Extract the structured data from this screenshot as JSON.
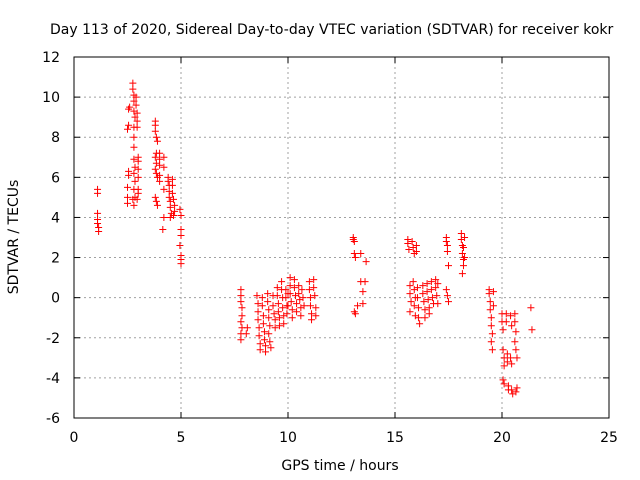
{
  "chart_data": {
    "type": "scatter",
    "title": "Day 113 of 2020, Sidereal Day-to-day VTEC variation (SDTVAR) for receiver kokr",
    "xlabel": "GPS time / hours",
    "ylabel": "SDTVAR / TECUs",
    "xlim": [
      0,
      25
    ],
    "ylim": [
      -6,
      12
    ],
    "xticks": [
      0,
      5,
      10,
      15,
      20,
      25
    ],
    "yticks": [
      -6,
      -4,
      -2,
      0,
      2,
      4,
      6,
      8,
      10,
      12
    ],
    "xtick_labels": [
      "0",
      "5",
      "10",
      "15",
      "20",
      "25"
    ],
    "ytick_labels": [
      "-6",
      "-4",
      "-2",
      "0",
      "2",
      "4",
      "6",
      "8",
      "10",
      "12"
    ],
    "grid": true,
    "marker": "+",
    "color": "#ff0000",
    "series": [
      {
        "name": "SDTVAR",
        "points": [
          [
            1.1,
            5.4
          ],
          [
            1.1,
            5.2
          ],
          [
            1.1,
            4.2
          ],
          [
            1.1,
            3.9
          ],
          [
            1.1,
            3.7
          ],
          [
            1.15,
            3.5
          ],
          [
            1.15,
            3.3
          ],
          [
            2.5,
            4.7
          ],
          [
            2.5,
            5.0
          ],
          [
            2.5,
            5.5
          ],
          [
            2.55,
            6.1
          ],
          [
            2.55,
            6.3
          ],
          [
            2.5,
            8.4
          ],
          [
            2.55,
            8.6
          ],
          [
            2.55,
            9.4
          ],
          [
            2.6,
            9.5
          ],
          [
            2.75,
            10.7
          ],
          [
            2.75,
            10.4
          ],
          [
            2.8,
            10.1
          ],
          [
            2.8,
            9.8
          ],
          [
            2.8,
            9.3
          ],
          [
            2.85,
            9.0
          ],
          [
            2.8,
            8.5
          ],
          [
            2.8,
            8.0
          ],
          [
            2.8,
            7.5
          ],
          [
            2.8,
            6.9
          ],
          [
            2.85,
            6.5
          ],
          [
            2.8,
            6.2
          ],
          [
            2.85,
            5.8
          ],
          [
            2.8,
            5.4
          ],
          [
            2.85,
            5.0
          ],
          [
            2.8,
            4.6
          ],
          [
            2.75,
            4.9
          ],
          [
            2.9,
            10.0
          ],
          [
            2.9,
            9.6
          ],
          [
            2.95,
            9.2
          ],
          [
            2.95,
            8.8
          ],
          [
            2.95,
            8.5
          ],
          [
            3.0,
            7.0
          ],
          [
            3.0,
            6.8
          ],
          [
            3.0,
            6.4
          ],
          [
            3.0,
            6.0
          ],
          [
            3.0,
            5.4
          ],
          [
            3.0,
            5.2
          ],
          [
            2.95,
            4.9
          ],
          [
            3.8,
            8.8
          ],
          [
            3.8,
            8.6
          ],
          [
            3.8,
            8.3
          ],
          [
            3.85,
            8.0
          ],
          [
            3.9,
            7.8
          ],
          [
            3.85,
            7.2
          ],
          [
            3.8,
            7.0
          ],
          [
            3.85,
            6.7
          ],
          [
            3.8,
            6.4
          ],
          [
            3.85,
            6.2
          ],
          [
            3.9,
            6.0
          ],
          [
            3.8,
            5.0
          ],
          [
            3.85,
            4.8
          ],
          [
            3.9,
            4.6
          ],
          [
            4.0,
            7.2
          ],
          [
            4.0,
            6.9
          ],
          [
            4.0,
            6.6
          ],
          [
            4.0,
            6.1
          ],
          [
            4.0,
            5.8
          ],
          [
            4.2,
            7.0
          ],
          [
            4.2,
            6.5
          ],
          [
            4.2,
            5.4
          ],
          [
            4.2,
            4.0
          ],
          [
            4.15,
            3.4
          ],
          [
            4.4,
            6.0
          ],
          [
            4.4,
            5.8
          ],
          [
            4.45,
            5.6
          ],
          [
            4.45,
            5.3
          ],
          [
            4.45,
            5.0
          ],
          [
            4.5,
            4.8
          ],
          [
            4.5,
            4.5
          ],
          [
            4.55,
            4.2
          ],
          [
            4.5,
            4.0
          ],
          [
            4.6,
            5.9
          ],
          [
            4.6,
            5.6
          ],
          [
            4.6,
            5.2
          ],
          [
            4.65,
            4.9
          ],
          [
            4.7,
            4.6
          ],
          [
            4.7,
            4.3
          ],
          [
            4.65,
            4.1
          ],
          [
            4.95,
            4.4
          ],
          [
            5.0,
            4.1
          ],
          [
            5.0,
            3.4
          ],
          [
            5.0,
            3.1
          ],
          [
            4.95,
            2.6
          ],
          [
            5.0,
            2.1
          ],
          [
            5.0,
            1.9
          ],
          [
            5.0,
            1.7
          ],
          [
            7.8,
            0.4
          ],
          [
            7.8,
            0.1
          ],
          [
            7.8,
            -0.2
          ],
          [
            7.85,
            -0.5
          ],
          [
            7.85,
            -0.9
          ],
          [
            7.8,
            -1.2
          ],
          [
            7.85,
            -1.5
          ],
          [
            7.8,
            -1.8
          ],
          [
            7.8,
            -2.1
          ],
          [
            8.1,
            -1.5
          ],
          [
            8.05,
            -1.8
          ],
          [
            8.55,
            0.1
          ],
          [
            8.6,
            -0.3
          ],
          [
            8.6,
            -0.7
          ],
          [
            8.6,
            -1.1
          ],
          [
            8.65,
            -1.5
          ],
          [
            8.65,
            -1.9
          ],
          [
            8.7,
            -2.3
          ],
          [
            8.7,
            -2.6
          ],
          [
            8.8,
            0.0
          ],
          [
            8.8,
            -0.4
          ],
          [
            8.85,
            -0.9
          ],
          [
            8.85,
            -1.3
          ],
          [
            8.9,
            -1.7
          ],
          [
            8.9,
            -2.1
          ],
          [
            8.95,
            -2.4
          ],
          [
            8.95,
            -2.7
          ],
          [
            9.05,
            0.2
          ],
          [
            9.05,
            -0.2
          ],
          [
            9.1,
            -0.6
          ],
          [
            9.1,
            -1.0
          ],
          [
            9.15,
            -1.4
          ],
          [
            9.1,
            -1.8
          ],
          [
            9.15,
            -2.2
          ],
          [
            9.2,
            -2.5
          ],
          [
            9.3,
            0.1
          ],
          [
            9.3,
            -0.4
          ],
          [
            9.35,
            -0.8
          ],
          [
            9.4,
            -1.1
          ],
          [
            9.4,
            -1.5
          ],
          [
            9.5,
            0.5
          ],
          [
            9.5,
            0.1
          ],
          [
            9.55,
            -0.3
          ],
          [
            9.55,
            -0.7
          ],
          [
            9.6,
            -1.0
          ],
          [
            9.6,
            -1.4
          ],
          [
            9.7,
            0.8
          ],
          [
            9.7,
            0.4
          ],
          [
            9.75,
            0.0
          ],
          [
            9.75,
            -0.5
          ],
          [
            9.8,
            -0.9
          ],
          [
            9.8,
            -1.3
          ],
          [
            9.9,
            0.4
          ],
          [
            9.9,
            0.0
          ],
          [
            9.95,
            -0.4
          ],
          [
            9.95,
            -0.8
          ],
          [
            10.0,
            -0.4
          ],
          [
            10.0,
            0.2
          ],
          [
            10.1,
            1.0
          ],
          [
            10.1,
            0.6
          ],
          [
            10.1,
            0.2
          ],
          [
            10.15,
            -0.2
          ],
          [
            10.2,
            -0.6
          ],
          [
            10.2,
            -1.0
          ],
          [
            10.3,
            0.9
          ],
          [
            10.3,
            0.5
          ],
          [
            10.35,
            0.1
          ],
          [
            10.4,
            -0.3
          ],
          [
            10.4,
            -0.7
          ],
          [
            10.5,
            0.6
          ],
          [
            10.5,
            0.2
          ],
          [
            10.55,
            -0.1
          ],
          [
            10.6,
            -0.5
          ],
          [
            10.6,
            -0.9
          ],
          [
            10.65,
            0.4
          ],
          [
            10.7,
            0.0
          ],
          [
            10.75,
            -0.4
          ],
          [
            11.0,
            0.8
          ],
          [
            11.0,
            0.4
          ],
          [
            11.05,
            0.0
          ],
          [
            11.05,
            -0.4
          ],
          [
            11.1,
            -0.8
          ],
          [
            11.1,
            -1.1
          ],
          [
            11.2,
            0.9
          ],
          [
            11.2,
            0.5
          ],
          [
            11.25,
            0.1
          ],
          [
            11.3,
            -0.5
          ],
          [
            11.3,
            -0.9
          ],
          [
            13.05,
            3.0
          ],
          [
            13.05,
            2.9
          ],
          [
            13.1,
            2.8
          ],
          [
            13.1,
            2.2
          ],
          [
            13.15,
            2.0
          ],
          [
            13.1,
            -0.7
          ],
          [
            13.15,
            -0.8
          ],
          [
            13.25,
            -0.4
          ],
          [
            13.4,
            0.8
          ],
          [
            13.4,
            2.2
          ],
          [
            13.5,
            0.3
          ],
          [
            13.5,
            -0.3
          ],
          [
            13.6,
            0.8
          ],
          [
            13.65,
            1.8
          ],
          [
            15.6,
            2.9
          ],
          [
            15.6,
            2.7
          ],
          [
            15.65,
            2.4
          ],
          [
            15.7,
            0.6
          ],
          [
            15.7,
            0.2
          ],
          [
            15.75,
            -0.2
          ],
          [
            15.7,
            -0.7
          ],
          [
            15.8,
            2.8
          ],
          [
            15.85,
            2.5
          ],
          [
            15.9,
            2.2
          ],
          [
            15.85,
            0.8
          ],
          [
            15.9,
            0.4
          ],
          [
            15.95,
            0.0
          ],
          [
            15.9,
            -0.4
          ],
          [
            15.95,
            -0.9
          ],
          [
            16.0,
            2.6
          ],
          [
            16.0,
            2.3
          ],
          [
            16.05,
            0.5
          ],
          [
            16.05,
            0.0
          ],
          [
            16.1,
            -0.5
          ],
          [
            16.1,
            -1.0
          ],
          [
            16.15,
            -1.3
          ],
          [
            16.3,
            0.6
          ],
          [
            16.3,
            0.2
          ],
          [
            16.35,
            -0.2
          ],
          [
            16.4,
            -0.6
          ],
          [
            16.4,
            -1.0
          ],
          [
            16.5,
            0.7
          ],
          [
            16.5,
            0.3
          ],
          [
            16.55,
            -0.1
          ],
          [
            16.6,
            -0.5
          ],
          [
            16.6,
            -0.8
          ],
          [
            16.7,
            0.8
          ],
          [
            16.7,
            0.4
          ],
          [
            16.75,
            0.0
          ],
          [
            16.8,
            -0.3
          ],
          [
            16.9,
            0.9
          ],
          [
            16.9,
            0.5
          ],
          [
            16.95,
            0.1
          ],
          [
            17.0,
            -0.3
          ],
          [
            17.0,
            0.7
          ],
          [
            17.4,
            3.0
          ],
          [
            17.4,
            2.8
          ],
          [
            17.45,
            2.6
          ],
          [
            17.45,
            2.3
          ],
          [
            17.5,
            1.6
          ],
          [
            17.4,
            0.4
          ],
          [
            17.45,
            0.1
          ],
          [
            17.5,
            -0.2
          ],
          [
            18.1,
            3.2
          ],
          [
            18.1,
            2.9
          ],
          [
            18.15,
            2.6
          ],
          [
            18.15,
            2.2
          ],
          [
            18.2,
            1.9
          ],
          [
            18.2,
            1.6
          ],
          [
            18.15,
            1.2
          ],
          [
            18.2,
            2.5
          ],
          [
            18.25,
            3.0
          ],
          [
            18.25,
            2.0
          ],
          [
            19.4,
            0.4
          ],
          [
            19.4,
            0.2
          ],
          [
            19.45,
            -0.2
          ],
          [
            19.45,
            -0.6
          ],
          [
            19.5,
            -1.0
          ],
          [
            19.5,
            -1.4
          ],
          [
            19.55,
            -1.8
          ],
          [
            19.5,
            -2.2
          ],
          [
            19.55,
            -2.6
          ],
          [
            19.6,
            0.3
          ],
          [
            19.6,
            -0.4
          ],
          [
            20.0,
            -0.8
          ],
          [
            20.0,
            -1.2
          ],
          [
            20.05,
            -1.6
          ],
          [
            20.05,
            -2.6
          ],
          [
            20.1,
            -3.0
          ],
          [
            20.1,
            -3.4
          ],
          [
            20.05,
            -4.1
          ],
          [
            20.1,
            -4.3
          ],
          [
            20.2,
            -0.8
          ],
          [
            20.2,
            -1.2
          ],
          [
            20.25,
            -2.8
          ],
          [
            20.25,
            -3.2
          ],
          [
            20.3,
            -4.4
          ],
          [
            20.3,
            -4.6
          ],
          [
            20.4,
            -0.9
          ],
          [
            20.45,
            -1.4
          ],
          [
            20.4,
            -3.0
          ],
          [
            20.45,
            -3.3
          ],
          [
            20.5,
            -4.8
          ],
          [
            20.45,
            -4.6
          ],
          [
            20.6,
            -0.8
          ],
          [
            20.6,
            -1.2
          ],
          [
            20.65,
            -1.7
          ],
          [
            20.6,
            -2.2
          ],
          [
            20.65,
            -2.6
          ],
          [
            20.7,
            -3.0
          ],
          [
            20.7,
            -4.5
          ],
          [
            20.65,
            -4.7
          ],
          [
            21.35,
            -0.5
          ],
          [
            21.4,
            -1.6
          ]
        ]
      }
    ]
  }
}
